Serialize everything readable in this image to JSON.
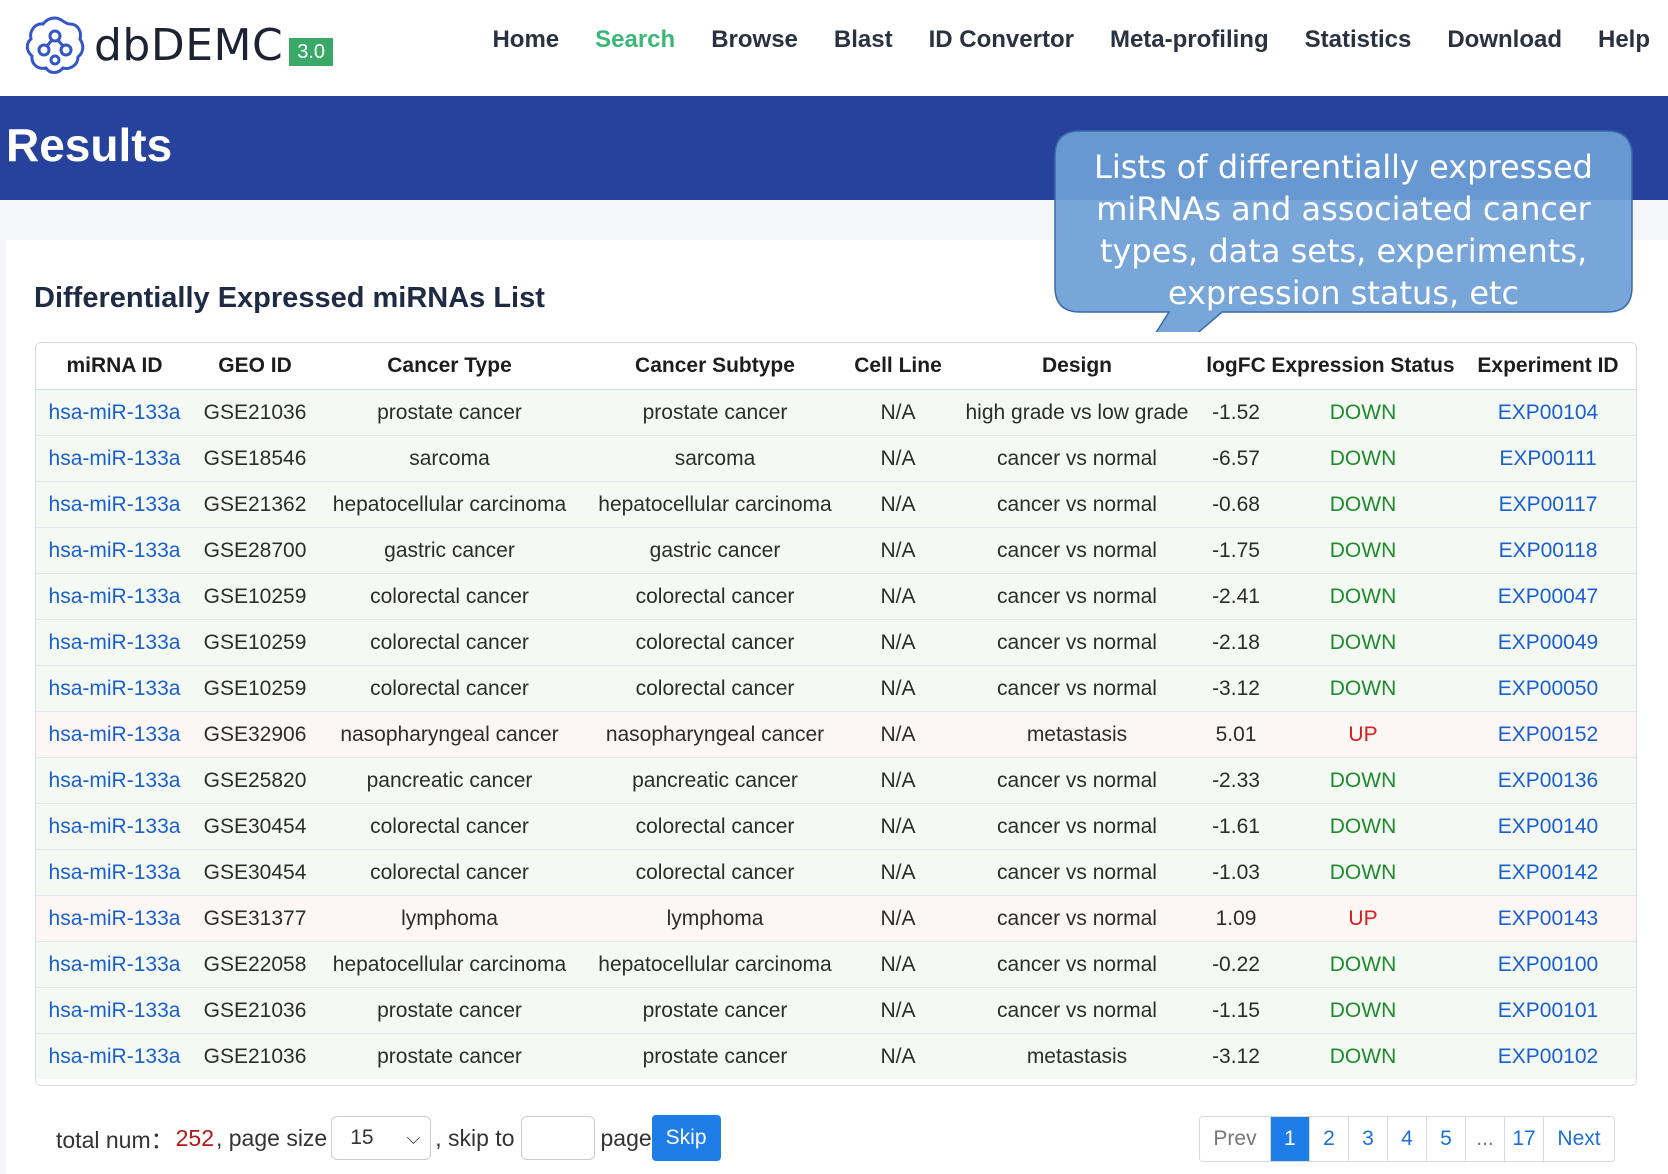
{
  "header": {
    "logo_text": "dbDEMC",
    "logo_version": "3.0",
    "nav": [
      {
        "label": "Home",
        "active": false
      },
      {
        "label": "Search",
        "active": true
      },
      {
        "label": "Browse",
        "active": false
      },
      {
        "label": "Blast",
        "active": false
      },
      {
        "label": "ID Convertor",
        "active": false
      },
      {
        "label": "Meta-profiling",
        "active": false
      },
      {
        "label": "Statistics",
        "active": false
      },
      {
        "label": "Download",
        "active": false
      },
      {
        "label": "Help",
        "active": false
      }
    ],
    "active_color": "#3cb779"
  },
  "banner": {
    "title": "Results",
    "bg_color": "#27429c"
  },
  "list_title": "Differentially Expressed miRNAs List",
  "table": {
    "headers": [
      "miRNA ID",
      "GEO ID",
      "Cancer Type",
      "Cancer Subtype",
      "Cell Line",
      "Design",
      "logFC",
      "Expression Status",
      "Experiment ID"
    ],
    "rows": [
      [
        "hsa-miR-133a",
        "GSE21036",
        "prostate cancer",
        "prostate cancer",
        "N/A",
        "high grade vs low grade",
        "-1.52",
        "DOWN",
        "EXP00104"
      ],
      [
        "hsa-miR-133a",
        "GSE18546",
        "sarcoma",
        "sarcoma",
        "N/A",
        "cancer vs normal",
        "-6.57",
        "DOWN",
        "EXP00111"
      ],
      [
        "hsa-miR-133a",
        "GSE21362",
        "hepatocellular carcinoma",
        "hepatocellular carcinoma",
        "N/A",
        "cancer vs normal",
        "-0.68",
        "DOWN",
        "EXP00117"
      ],
      [
        "hsa-miR-133a",
        "GSE28700",
        "gastric cancer",
        "gastric cancer",
        "N/A",
        "cancer vs normal",
        "-1.75",
        "DOWN",
        "EXP00118"
      ],
      [
        "hsa-miR-133a",
        "GSE10259",
        "colorectal cancer",
        "colorectal cancer",
        "N/A",
        "cancer vs normal",
        "-2.41",
        "DOWN",
        "EXP00047"
      ],
      [
        "hsa-miR-133a",
        "GSE10259",
        "colorectal cancer",
        "colorectal cancer",
        "N/A",
        "cancer vs normal",
        "-2.18",
        "DOWN",
        "EXP00049"
      ],
      [
        "hsa-miR-133a",
        "GSE10259",
        "colorectal cancer",
        "colorectal cancer",
        "N/A",
        "cancer vs normal",
        "-3.12",
        "DOWN",
        "EXP00050"
      ],
      [
        "hsa-miR-133a",
        "GSE32906",
        "nasopharyngeal cancer",
        "nasopharyngeal cancer",
        "N/A",
        "metastasis",
        "5.01",
        "UP",
        "EXP00152"
      ],
      [
        "hsa-miR-133a",
        "GSE25820",
        "pancreatic cancer",
        "pancreatic cancer",
        "N/A",
        "cancer vs normal",
        "-2.33",
        "DOWN",
        "EXP00136"
      ],
      [
        "hsa-miR-133a",
        "GSE30454",
        "colorectal cancer",
        "colorectal cancer",
        "N/A",
        "cancer vs normal",
        "-1.61",
        "DOWN",
        "EXP00140"
      ],
      [
        "hsa-miR-133a",
        "GSE30454",
        "colorectal cancer",
        "colorectal cancer",
        "N/A",
        "cancer vs normal",
        "-1.03",
        "DOWN",
        "EXP00142"
      ],
      [
        "hsa-miR-133a",
        "GSE31377",
        "lymphoma",
        "lymphoma",
        "N/A",
        "cancer vs normal",
        "1.09",
        "UP",
        "EXP00143"
      ],
      [
        "hsa-miR-133a",
        "GSE22058",
        "hepatocellular carcinoma",
        "hepatocellular carcinoma",
        "N/A",
        "cancer vs normal",
        "-0.22",
        "DOWN",
        "EXP00100"
      ],
      [
        "hsa-miR-133a",
        "GSE21036",
        "prostate cancer",
        "prostate cancer",
        "N/A",
        "cancer vs normal",
        "-1.15",
        "DOWN",
        "EXP00101"
      ],
      [
        "hsa-miR-133a",
        "GSE21036",
        "prostate cancer",
        "prostate cancer",
        "N/A",
        "metastasis",
        "-3.12",
        "DOWN",
        "EXP00102"
      ]
    ],
    "status_colors": {
      "DOWN": "#1f8a2e",
      "UP": "#d42020"
    },
    "link_color": "#1a5fd0"
  },
  "footer": {
    "total_label": "total num：",
    "total_value": "252",
    "page_size_label": ", page size",
    "page_size_value": "15",
    "skip_label": ", skip to",
    "page_label": "page",
    "skip_button": "Skip",
    "pager": {
      "prev": "Prev",
      "pages": [
        "1",
        "2",
        "3",
        "4",
        "5"
      ],
      "ellipsis": "...",
      "last": "17",
      "next": "Next",
      "current": "1"
    }
  },
  "callout": {
    "text": "Lists of differentially expressed miRNAs and associated cancer types, data sets, experiments, expression status, etc",
    "fill_color": "#6e9fd6"
  }
}
